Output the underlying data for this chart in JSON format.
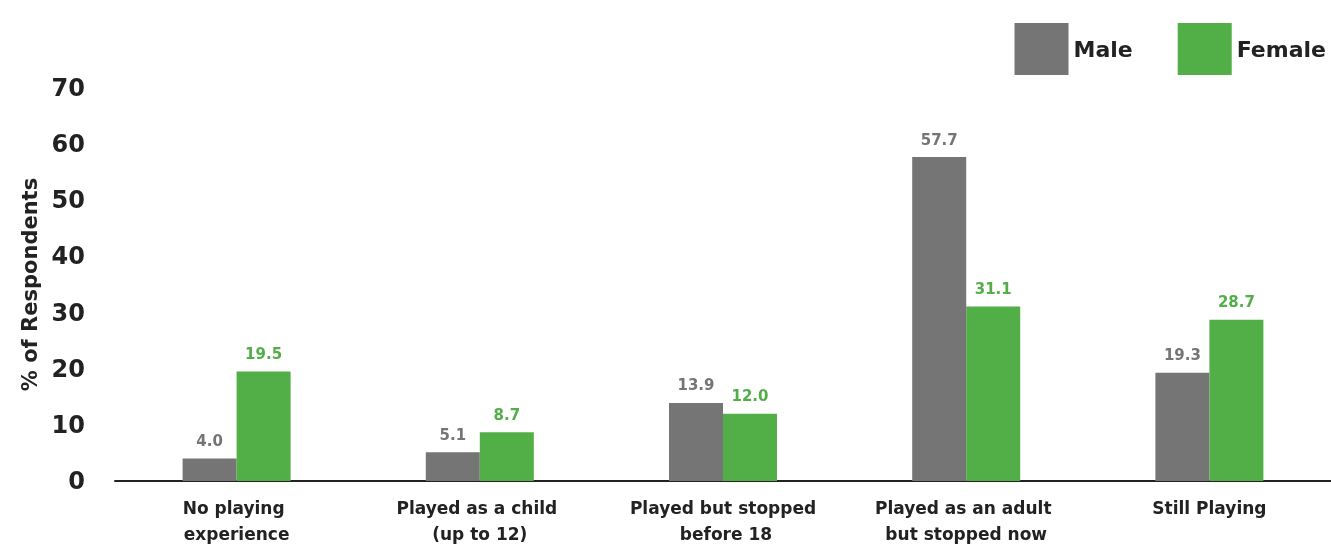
{
  "chart_data": {
    "type": "bar",
    "ylabel": "% of Respondents",
    "categories": [
      "No playing experience",
      "Played as a child (up to 12)",
      "Played but stopped before 18",
      "Played as an adult but stopped now",
      "Still Playing"
    ],
    "series": [
      {
        "name": "Male",
        "color": "#757575",
        "values": [
          4.0,
          5.1,
          13.9,
          57.7,
          19.3
        ],
        "value_labels": [
          "4.0",
          "5.1",
          "13.9",
          "57.7",
          "19.3"
        ]
      },
      {
        "name": "Female",
        "color": "#52ae47",
        "values": [
          19.5,
          8.7,
          12.0,
          31.1,
          28.7
        ],
        "value_labels": [
          "19.5",
          "8.7",
          "12.0",
          "31.1",
          "28.7"
        ]
      }
    ],
    "ylim": [
      0,
      70
    ],
    "yticks": [
      0,
      10,
      20,
      30,
      40,
      50,
      60,
      70
    ],
    "grid": false,
    "legend": "top right"
  }
}
